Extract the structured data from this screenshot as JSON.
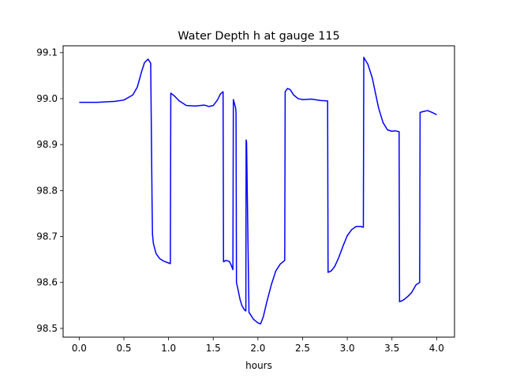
{
  "chart_data": {
    "type": "line",
    "title": "Water Depth h at gauge 115",
    "xlabel": "hours",
    "ylabel": "",
    "xlim": [
      -0.18,
      4.2
    ],
    "ylim": [
      98.481,
      99.115
    ],
    "xticks": [
      0.0,
      0.5,
      1.0,
      1.5,
      2.0,
      2.5,
      3.0,
      3.5,
      4.0
    ],
    "xtick_labels": [
      "0.0",
      "0.5",
      "1.0",
      "1.5",
      "2.0",
      "2.5",
      "3.0",
      "3.5",
      "4.0"
    ],
    "yticks": [
      98.5,
      98.6,
      98.7,
      98.8,
      98.9,
      99.0,
      99.1
    ],
    "ytick_labels": [
      "98.5",
      "98.6",
      "98.7",
      "98.8",
      "98.9",
      "99.0",
      "99.1"
    ],
    "grid": false,
    "series": [
      {
        "color": "#0000ff",
        "x": [
          0.0,
          0.2,
          0.4,
          0.5,
          0.6,
          0.65,
          0.7,
          0.73,
          0.77,
          0.8,
          0.815,
          0.82,
          0.83,
          0.86,
          0.9,
          0.95,
          1.02,
          1.025,
          1.07,
          1.12,
          1.2,
          1.3,
          1.4,
          1.45,
          1.5,
          1.55,
          1.58,
          1.61,
          1.615,
          1.64,
          1.68,
          1.7,
          1.72,
          1.725,
          1.75,
          1.755,
          1.76,
          1.78,
          1.8,
          1.82,
          1.85,
          1.865,
          1.868,
          1.873,
          1.9,
          1.95,
          2.0,
          2.03,
          2.06,
          2.1,
          2.15,
          2.2,
          2.25,
          2.3,
          2.305,
          2.33,
          2.36,
          2.4,
          2.45,
          2.5,
          2.6,
          2.7,
          2.78,
          2.785,
          2.82,
          2.86,
          2.9,
          2.95,
          3.0,
          3.05,
          3.1,
          3.15,
          3.18,
          3.185,
          3.19,
          3.23,
          3.28,
          3.35,
          3.4,
          3.45,
          3.5,
          3.54,
          3.58,
          3.585,
          3.63,
          3.68,
          3.72,
          3.77,
          3.81,
          3.815,
          3.85,
          3.9,
          3.95,
          4.0
        ],
        "y": [
          98.992,
          98.992,
          98.994,
          98.997,
          99.008,
          99.025,
          99.06,
          99.078,
          99.086,
          99.077,
          98.78,
          98.705,
          98.685,
          98.663,
          98.652,
          98.646,
          98.641,
          99.012,
          99.005,
          98.995,
          98.985,
          98.984,
          98.986,
          98.983,
          98.985,
          98.998,
          99.01,
          99.015,
          98.645,
          98.648,
          98.646,
          98.638,
          98.628,
          98.998,
          98.98,
          98.97,
          98.6,
          98.582,
          98.563,
          98.55,
          98.54,
          98.538,
          98.91,
          98.905,
          98.535,
          98.52,
          98.512,
          98.51,
          98.525,
          98.558,
          98.595,
          98.625,
          98.64,
          98.648,
          99.015,
          99.022,
          99.02,
          99.008,
          99.0,
          98.998,
          98.999,
          98.996,
          98.995,
          98.622,
          98.625,
          98.635,
          98.652,
          98.678,
          98.702,
          98.715,
          98.722,
          98.722,
          98.72,
          99.09,
          99.088,
          99.075,
          99.045,
          98.98,
          98.948,
          98.932,
          98.929,
          98.93,
          98.928,
          98.558,
          98.562,
          98.57,
          98.578,
          98.595,
          98.6,
          98.97,
          98.972,
          98.974,
          98.97,
          98.965
        ]
      }
    ]
  }
}
